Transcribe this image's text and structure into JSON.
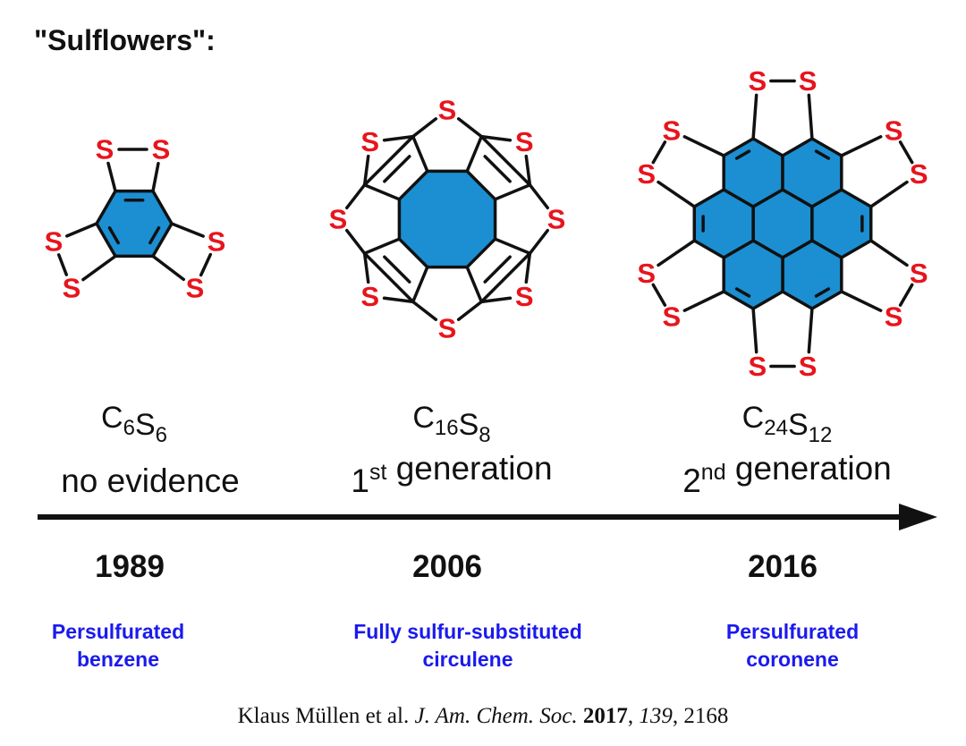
{
  "title": "\"Sulflowers\":",
  "atom": "S",
  "molecules": [
    {
      "formula": [
        [
          "C",
          "6"
        ],
        [
          "S",
          "6"
        ]
      ],
      "label": {
        "rest": "no evidence"
      },
      "year": "1989",
      "name": [
        "Persulfurated",
        "benzene"
      ]
    },
    {
      "formula": [
        [
          "C",
          "16"
        ],
        [
          "S",
          "8"
        ]
      ],
      "label": {
        "number": "1",
        "sup": "st",
        "rest": "generation"
      },
      "year": "2006",
      "name": [
        "Fully sulfur-substituted",
        "circulene"
      ]
    },
    {
      "formula": [
        [
          "C",
          "24"
        ],
        [
          "S",
          "12"
        ]
      ],
      "label": {
        "number": "2",
        "sup": "nd",
        "rest": "generation"
      },
      "year": "2016",
      "name": [
        "Persulfurated",
        "coronene"
      ]
    }
  ],
  "citation": {
    "authors": "Klaus Müllen et al.",
    "journal": "J. Am. Chem. Soc.",
    "year": "2017",
    "volume": "139",
    "pages": "2168"
  }
}
